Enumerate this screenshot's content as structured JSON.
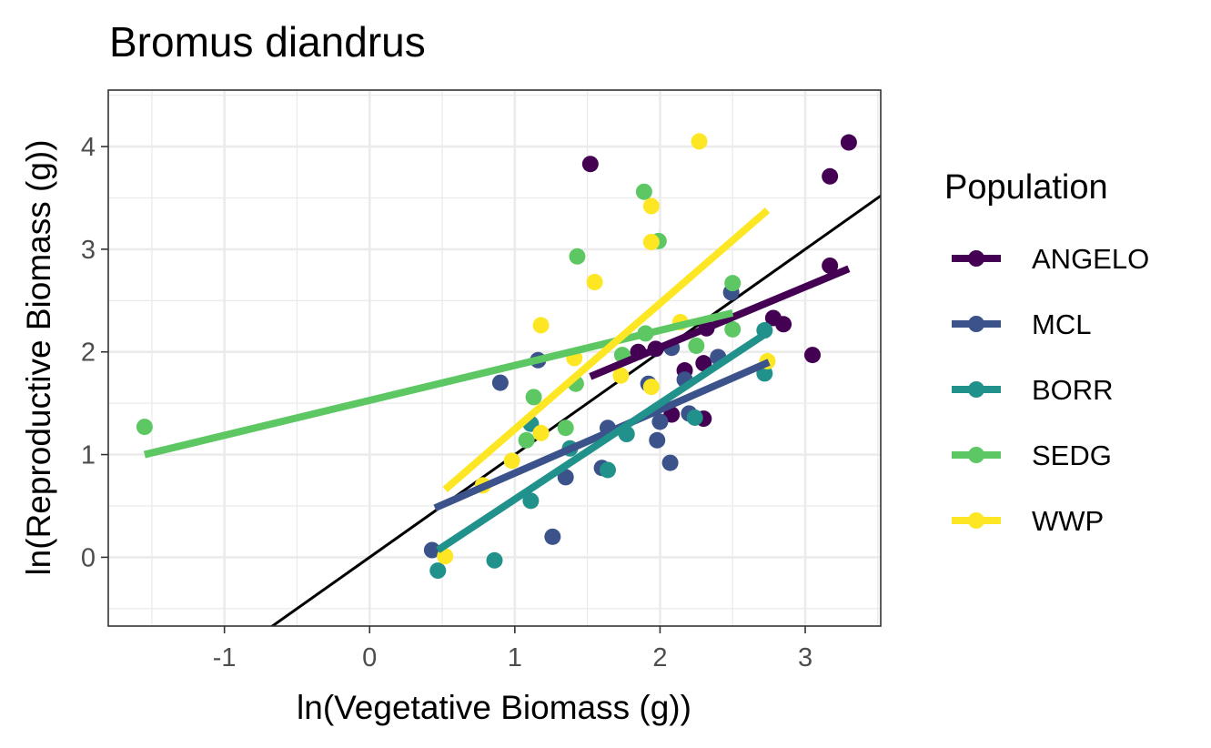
{
  "chart_data": {
    "type": "scatter",
    "title": "Bromus diandrus",
    "xlabel": "ln(Vegetative Biomass (g))",
    "ylabel": "ln(Reproductive Biomass (g))",
    "xlim": [
      -1.8,
      3.52
    ],
    "ylim": [
      -0.67,
      4.55
    ],
    "x_ticks": [
      -1,
      0,
      1,
      2,
      3
    ],
    "x_tick_labels": [
      "-1",
      "0",
      "1",
      "2",
      "3"
    ],
    "y_ticks": [
      0,
      1,
      2,
      3,
      4
    ],
    "y_tick_labels": [
      "0",
      "1",
      "2",
      "3",
      "4"
    ],
    "grid": true,
    "legend": {
      "title": "Population",
      "position": "right"
    },
    "reference_line": {
      "slope": 1,
      "intercept": 0,
      "color": "#000000"
    },
    "series": [
      {
        "name": "ANGELO",
        "color": "#440154",
        "points": [
          [
            1.52,
            3.83
          ],
          [
            3.3,
            4.04
          ],
          [
            3.17,
            3.71
          ],
          [
            3.17,
            2.84
          ],
          [
            2.78,
            2.33
          ],
          [
            2.85,
            2.27
          ],
          [
            2.32,
            2.23
          ],
          [
            1.85,
            2.0
          ],
          [
            1.97,
            2.03
          ],
          [
            3.05,
            1.97
          ],
          [
            2.17,
            1.82
          ],
          [
            2.3,
            1.89
          ],
          [
            2.08,
            1.39
          ],
          [
            2.3,
            1.35
          ]
        ],
        "fit": [
          [
            1.52,
            1.76
          ],
          [
            3.3,
            2.81
          ]
        ]
      },
      {
        "name": "MCL",
        "color": "#3B528B",
        "points": [
          [
            0.9,
            1.7
          ],
          [
            1.16,
            1.92
          ],
          [
            1.92,
            1.69
          ],
          [
            2.49,
            2.58
          ],
          [
            2.08,
            2.04
          ],
          [
            2.17,
            1.73
          ],
          [
            2.4,
            1.95
          ],
          [
            2.0,
            1.32
          ],
          [
            2.2,
            1.4
          ],
          [
            1.98,
            1.14
          ],
          [
            2.07,
            0.92
          ],
          [
            1.6,
            0.87
          ],
          [
            1.35,
            0.78
          ],
          [
            1.26,
            0.2
          ],
          [
            0.43,
            0.07
          ],
          [
            1.64,
            1.26
          ]
        ],
        "fit": [
          [
            0.45,
            0.48
          ],
          [
            2.75,
            1.9
          ]
        ]
      },
      {
        "name": "BORR",
        "color": "#21918C",
        "points": [
          [
            0.47,
            -0.13
          ],
          [
            0.86,
            -0.03
          ],
          [
            1.11,
            0.55
          ],
          [
            1.64,
            0.85
          ],
          [
            1.77,
            1.2
          ],
          [
            2.72,
            2.21
          ],
          [
            2.72,
            1.79
          ],
          [
            2.24,
            1.36
          ],
          [
            1.11,
            1.3
          ],
          [
            1.38,
            1.06
          ]
        ],
        "fit": [
          [
            0.47,
            0.07
          ],
          [
            2.72,
            2.17
          ]
        ]
      },
      {
        "name": "SEDG",
        "color": "#5DC863",
        "points": [
          [
            -1.55,
            1.27
          ],
          [
            1.43,
            2.93
          ],
          [
            1.89,
            3.56
          ],
          [
            1.99,
            3.08
          ],
          [
            2.5,
            2.67
          ],
          [
            2.5,
            2.22
          ],
          [
            2.25,
            2.06
          ],
          [
            1.74,
            1.97
          ],
          [
            1.9,
            2.18
          ],
          [
            1.42,
            1.69
          ],
          [
            1.13,
            1.56
          ],
          [
            1.35,
            1.26
          ],
          [
            1.08,
            1.14
          ]
        ],
        "fit": [
          [
            -1.55,
            1.0
          ],
          [
            2.5,
            2.38
          ]
        ]
      },
      {
        "name": "WWP",
        "color": "#FDE725",
        "points": [
          [
            2.27,
            4.05
          ],
          [
            1.94,
            3.42
          ],
          [
            1.94,
            3.07
          ],
          [
            1.55,
            2.68
          ],
          [
            1.18,
            2.26
          ],
          [
            2.14,
            2.29
          ],
          [
            1.41,
            1.94
          ],
          [
            1.73,
            1.77
          ],
          [
            1.94,
            1.66
          ],
          [
            2.74,
            1.91
          ],
          [
            1.18,
            1.21
          ],
          [
            0.98,
            0.94
          ],
          [
            0.78,
            0.7
          ],
          [
            0.52,
            0.01
          ]
        ],
        "fit": [
          [
            0.52,
            0.66
          ],
          [
            2.74,
            3.38
          ]
        ]
      }
    ]
  }
}
